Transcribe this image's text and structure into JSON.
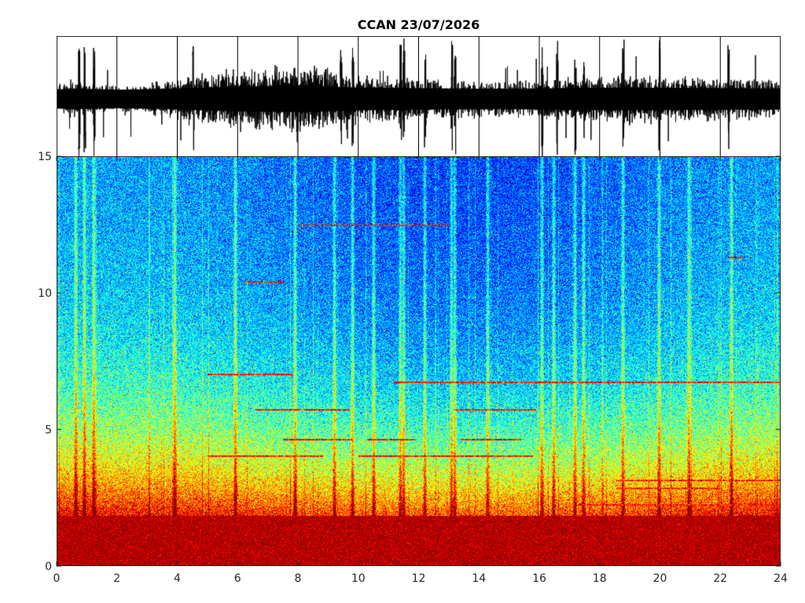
{
  "title": "CCAN 23/07/2026",
  "chart_data": [
    {
      "type": "line",
      "panel": "waveform",
      "title": "CCAN 23/07/2026",
      "xlim": [
        0,
        24
      ],
      "xticks_shown": false,
      "yticks_shown": false,
      "color": "#000000",
      "grid": true,
      "envelope_x": [
        0,
        0.5,
        1,
        2,
        3,
        4,
        5,
        6,
        7,
        8,
        9,
        10,
        11,
        12,
        13,
        14,
        15,
        16,
        17,
        18,
        19,
        20,
        21,
        22,
        23,
        24
      ],
      "envelope_amplitude": [
        0.25,
        0.35,
        0.3,
        0.22,
        0.28,
        0.35,
        0.45,
        0.55,
        0.6,
        0.62,
        0.55,
        0.45,
        0.4,
        0.38,
        0.35,
        0.33,
        0.32,
        0.35,
        0.4,
        0.42,
        0.45,
        0.42,
        0.4,
        0.38,
        0.36,
        0.35
      ],
      "spike_times": [
        0.7,
        0.9,
        1.2,
        4.5,
        9.4,
        9.8,
        11.4,
        11.5,
        12.2,
        13.1,
        13.2,
        16.1,
        16.6,
        17.2,
        17.5,
        18.8,
        20.0,
        22.3
      ]
    },
    {
      "type": "heatmap",
      "panel": "spectrogram",
      "x": [
        0,
        24
      ],
      "y": [
        0,
        15
      ],
      "xlim": [
        0,
        24
      ],
      "ylim": [
        0,
        15
      ],
      "xticks": [
        0,
        2,
        4,
        6,
        8,
        10,
        12,
        14,
        16,
        18,
        20,
        22,
        24
      ],
      "yticks": [
        0,
        5,
        10,
        15
      ],
      "colormap": "jet",
      "colors": {
        "low": "#00008f",
        "mid_low": "#0070ff",
        "mid": "#40ffbf",
        "mid_high": "#ffcf00",
        "high": "#800000"
      },
      "high_energy_band_hz": [
        0,
        1.8
      ],
      "horizontal_tones": [
        {
          "freq": 4.0,
          "from": 5.0,
          "to": 8.8
        },
        {
          "freq": 4.0,
          "from": 10.0,
          "to": 15.8
        },
        {
          "freq": 4.6,
          "from": 7.5,
          "to": 9.8
        },
        {
          "freq": 4.6,
          "from": 10.3,
          "to": 11.9
        },
        {
          "freq": 4.6,
          "from": 13.4,
          "to": 15.4
        },
        {
          "freq": 5.7,
          "from": 6.6,
          "to": 9.7
        },
        {
          "freq": 5.7,
          "from": 13.2,
          "to": 15.9
        },
        {
          "freq": 6.7,
          "from": 11.2,
          "to": 24.0
        },
        {
          "freq": 7.0,
          "from": 5.0,
          "to": 7.8
        },
        {
          "freq": 10.4,
          "from": 6.2,
          "to": 7.5
        },
        {
          "freq": 12.5,
          "from": 8.0,
          "to": 13.0
        },
        {
          "freq": 11.3,
          "from": 22.3,
          "to": 22.8
        },
        {
          "freq": 3.1,
          "from": 18.6,
          "to": 24.0
        },
        {
          "freq": 2.8,
          "from": 18.6,
          "to": 22.0
        },
        {
          "freq": 2.2,
          "from": 17.3,
          "to": 24.0
        }
      ],
      "vertical_bursts": [
        0.6,
        0.9,
        1.2,
        3.9,
        5.9,
        7.9,
        9.2,
        9.8,
        10.5,
        11.4,
        11.5,
        12.2,
        13.1,
        13.2,
        14.3,
        16.1,
        16.5,
        17.2,
        17.5,
        18.8,
        20.0,
        21.0,
        22.4
      ]
    }
  ]
}
